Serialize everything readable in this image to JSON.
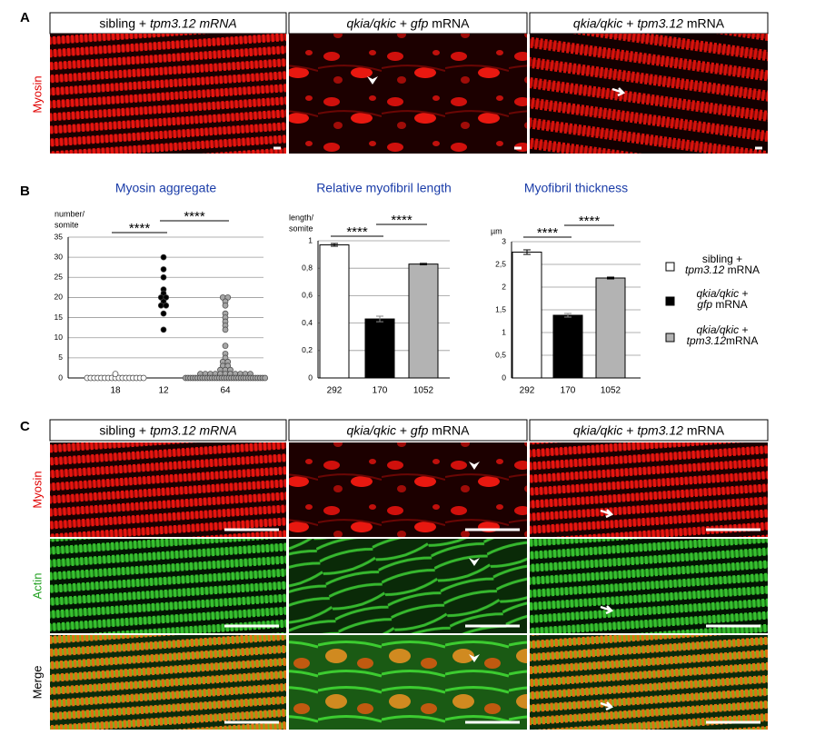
{
  "panel_labels": {
    "a": "A",
    "b": "B",
    "c": "C"
  },
  "panel_a": {
    "stain": "Myosin",
    "headers": [
      [
        {
          "text": "sibling + ",
          "italic": false
        },
        {
          "text": "tpm3.12 mRNA",
          "italic": true
        }
      ],
      [
        {
          "text": "qkia/qkic",
          "italic": true
        },
        {
          "text": " + ",
          "italic": false
        },
        {
          "text": "gfp",
          "italic": true
        },
        {
          "text": " mRNA",
          "italic": false
        }
      ],
      [
        {
          "text": "qkia/qkic",
          "italic": true
        },
        {
          "text": " + ",
          "italic": false
        },
        {
          "text": "tpm3.12",
          "italic": true
        },
        {
          "text": " mRNA",
          "italic": false
        }
      ]
    ]
  },
  "chart_data": [
    {
      "type": "strip",
      "title": "Myosin aggregate",
      "y_label": [
        "number/",
        "somite"
      ],
      "categories": [
        "18",
        "12",
        "64"
      ],
      "series": [
        {
          "color": "#ffffff",
          "values": [
            0,
            0,
            0,
            0,
            0,
            0,
            0,
            0,
            0,
            0,
            0,
            0,
            0,
            0,
            0,
            0,
            0,
            1
          ]
        },
        {
          "color": "#000000",
          "values": [
            30,
            27,
            25,
            22,
            21,
            20,
            20,
            19,
            18,
            18,
            16,
            12
          ]
        },
        {
          "color": "#a6a6a6",
          "values": [
            20,
            20,
            19,
            18,
            16,
            15,
            14,
            13,
            12,
            8,
            6,
            5,
            4,
            4,
            3,
            3,
            2,
            2,
            2,
            1,
            1,
            1,
            1,
            1,
            1,
            1,
            1,
            1,
            1,
            1,
            0,
            0,
            0,
            0,
            0,
            0,
            0,
            0,
            0,
            0,
            0,
            0,
            0,
            0,
            0,
            0,
            0,
            0,
            0,
            0,
            0,
            0,
            0,
            0,
            0,
            0,
            0,
            0,
            0,
            0,
            0,
            0,
            0,
            0
          ]
        }
      ],
      "ylim": [
        0,
        35
      ],
      "yticks": [
        0,
        5,
        10,
        15,
        20,
        25,
        30,
        35
      ],
      "grid": true,
      "annotations": [
        "****",
        "****"
      ]
    },
    {
      "type": "bar",
      "title": "Relative myofibril length",
      "y_label": [
        "length/",
        "somite"
      ],
      "categories": [
        "292",
        "170",
        "1052"
      ],
      "values": [
        0.97,
        0.43,
        0.83
      ],
      "errors": [
        0.01,
        0.02,
        0.005
      ],
      "colors": [
        "#ffffff",
        "#000000",
        "#b3b3b3"
      ],
      "ylim": [
        0,
        1
      ],
      "yticks": [
        0,
        {
          "value": 0.2,
          "label": "0,2"
        },
        {
          "value": 0.4,
          "label": "0,4"
        },
        {
          "value": 0.6,
          "label": "0,6"
        },
        {
          "value": 0.8,
          "label": "0,8"
        },
        1
      ],
      "grid": true,
      "annotations": [
        "****",
        "****"
      ]
    },
    {
      "type": "bar",
      "title": "Myofibril thickness",
      "y_label": [
        "µm"
      ],
      "categories": [
        "292",
        "170",
        "1052"
      ],
      "values": [
        2.77,
        1.38,
        2.2
      ],
      "errors": [
        0.05,
        0.04,
        0.02
      ],
      "colors": [
        "#ffffff",
        "#000000",
        "#b3b3b3"
      ],
      "ylim": [
        0,
        3
      ],
      "yticks": [
        0,
        {
          "value": 0.5,
          "label": "0,5"
        },
        1,
        {
          "value": 1.5,
          "label": "1,5"
        },
        2,
        {
          "value": 2.5,
          "label": "2,5"
        },
        3
      ],
      "grid": true,
      "annotations": [
        "****",
        "****"
      ]
    }
  ],
  "legend": [
    {
      "color": "#ffffff",
      "lines": [
        [
          {
            "text": "sibling +",
            "italic": false
          }
        ],
        [
          {
            "text": "tpm3.12",
            "italic": true
          },
          {
            "text": " mRNA",
            "italic": false
          }
        ]
      ]
    },
    {
      "color": "#000000",
      "lines": [
        [
          {
            "text": "qkia/qkic",
            "italic": true
          },
          {
            "text": " +",
            "italic": false
          }
        ],
        [
          {
            "text": "gfp",
            "italic": true
          },
          {
            "text": " mRNA",
            "italic": false
          }
        ]
      ]
    },
    {
      "color": "#b3b3b3",
      "lines": [
        [
          {
            "text": "qkia/qkic",
            "italic": true
          },
          {
            "text": " +",
            "italic": false
          }
        ],
        [
          {
            "text": "tpm3.12",
            "italic": true
          },
          {
            "text": "mRNA",
            "italic": false
          }
        ]
      ]
    }
  ],
  "panel_c": {
    "headers": [
      [
        {
          "text": "sibling + ",
          "italic": false
        },
        {
          "text": "tpm3.12 mRNA",
          "italic": true
        }
      ],
      [
        {
          "text": "qkia/qkic",
          "italic": true
        },
        {
          "text": " + ",
          "italic": false
        },
        {
          "text": "gfp",
          "italic": true
        },
        {
          "text": " mRNA",
          "italic": false
        }
      ],
      [
        {
          "text": "qkia/qkic",
          "italic": true
        },
        {
          "text": " + ",
          "italic": false
        },
        {
          "text": "tpm3.12",
          "italic": true
        },
        {
          "text": " mRNA",
          "italic": false
        }
      ]
    ],
    "rows": [
      "Myosin",
      "Actin",
      "Merge"
    ]
  }
}
